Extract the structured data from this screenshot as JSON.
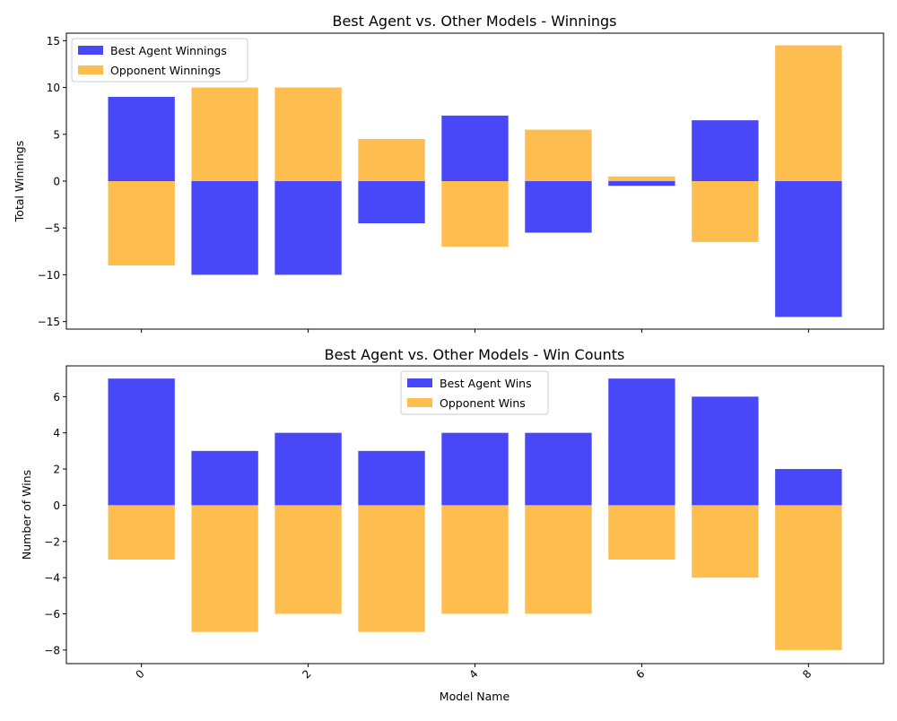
{
  "chart_data": [
    {
      "type": "bar",
      "title": "Best Agent vs. Other Models - Winnings",
      "ylabel": "Total Winnings",
      "xlabel": "",
      "ylim": [
        -15.8,
        15.8
      ],
      "yticks": [
        -15,
        -10,
        -5,
        0,
        5,
        10,
        15
      ],
      "xticks": [
        0,
        2,
        4,
        6,
        8
      ],
      "x": [
        0,
        1,
        2,
        3,
        4,
        5,
        6,
        7,
        8
      ],
      "legend_position": "upper-left",
      "series": [
        {
          "name": "Best Agent Winnings",
          "color": "#4848f8",
          "values": [
            9,
            -10,
            -10,
            -4.5,
            7,
            -5.5,
            -0.5,
            6.5,
            -14.5
          ]
        },
        {
          "name": "Opponent Winnings",
          "color": "#fdbe4f",
          "values": [
            -9,
            10,
            10,
            4.5,
            -7,
            5.5,
            0.5,
            -6.5,
            14.5
          ]
        }
      ]
    },
    {
      "type": "bar",
      "title": "Best Agent vs. Other Models - Win Counts",
      "ylabel": "Number of Wins",
      "xlabel": "Model Name",
      "ylim": [
        -8.75,
        7.7
      ],
      "yticks": [
        -8,
        -6,
        -4,
        -2,
        0,
        2,
        4,
        6
      ],
      "xticks": [
        0,
        2,
        4,
        6,
        8
      ],
      "x": [
        0,
        1,
        2,
        3,
        4,
        5,
        6,
        7,
        8
      ],
      "legend_position": "upper-center",
      "series": [
        {
          "name": "Best Agent Wins",
          "color": "#4848f8",
          "values": [
            7,
            3,
            4,
            3,
            4,
            4,
            7,
            6,
            2
          ]
        },
        {
          "name": "Opponent Wins",
          "color": "#fdbe4f",
          "values": [
            -3,
            -7,
            -6,
            -7,
            -6,
            -6,
            -3,
            -4,
            -8
          ]
        }
      ]
    }
  ]
}
